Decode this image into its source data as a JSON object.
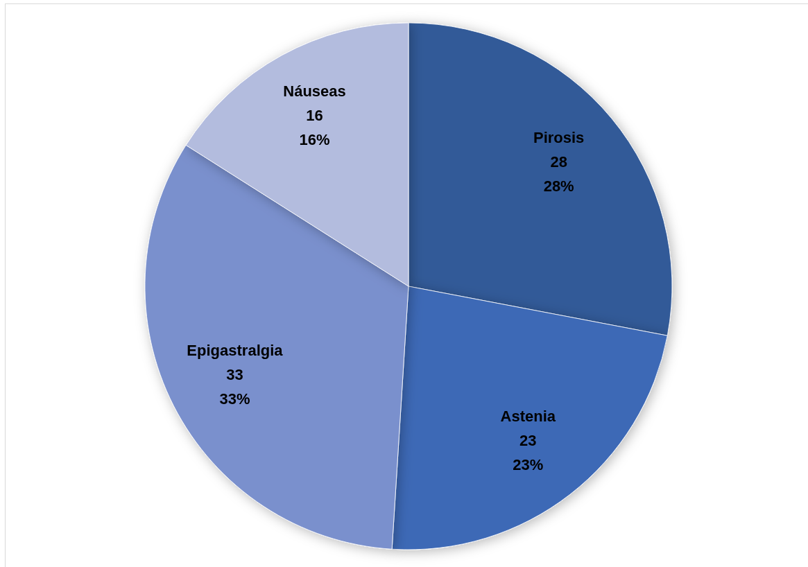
{
  "chart_data": {
    "type": "pie",
    "categories": [
      "Pirosis",
      "Astenia",
      "Epigastralgia",
      "Náuseas"
    ],
    "values": [
      28,
      23,
      33,
      16
    ],
    "colors": [
      "#335a98",
      "#3e69b6",
      "#7a90cd",
      "#b3bcde"
    ],
    "value_labels": [
      "28\n28%",
      "23\n23%",
      "33\n33%",
      "16\n16%"
    ],
    "legend": false
  }
}
